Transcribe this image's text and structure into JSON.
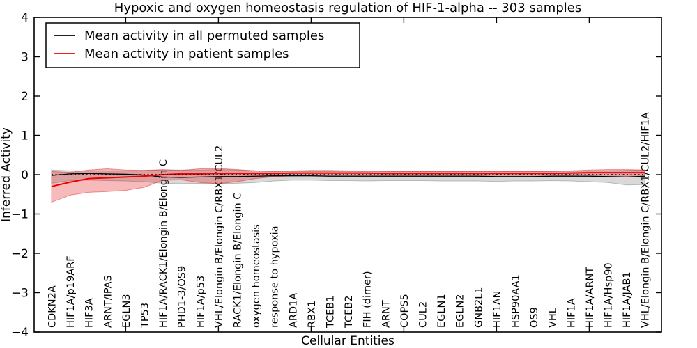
{
  "title": "Hypoxic and oxygen homeostasis regulation of HIF-1-alpha -- 303 samples",
  "legend": {
    "items": [
      {
        "label": "Mean activity in all permuted samples",
        "color": "#000000"
      },
      {
        "label": "Mean activity in patient samples",
        "color": "#ee0000"
      }
    ]
  },
  "chart_data": {
    "type": "line",
    "title": "Hypoxic and oxygen homeostasis regulation of HIF-1-alpha -- 303 samples",
    "xlabel": "Cellular Entities",
    "ylabel": "Inferred Activity",
    "ylim": [
      -4,
      4
    ],
    "ytick_values": [
      4,
      3,
      2,
      1,
      0,
      -1,
      -2,
      -3,
      -4
    ],
    "ytick_labels": [
      "4",
      "3",
      "2",
      "1",
      "0",
      "−1",
      "−2",
      "−3",
      "−4"
    ],
    "xticks_major": [
      5,
      10,
      15,
      20,
      25,
      30
    ],
    "grid": false,
    "legend_position": "upper left",
    "categories": [
      "CDKN2A",
      "HIF1A/p19ARF",
      "HIF3A",
      "ARNT/IPAS",
      "EGLN3",
      "TP53",
      "HIF1A/RACK1/Elongin B/Elongin C",
      "PHD1-3/OS9",
      "HIF1A/p53",
      "VHL/Elongin B/Elongin C/RBX1/CUL2",
      "RACK1/Elongin B/Elongin C",
      "oxygen homeostasis",
      "response to hypoxia",
      "ARD1A",
      "RBX1",
      "TCEB1",
      "TCEB2",
      "FIH (dimer)",
      "ARNT",
      "COPS5",
      "CUL2",
      "EGLN1",
      "EGLN2",
      "GNB2L1",
      "HIF1AN",
      "HSP90AA1",
      "OS9",
      "VHL",
      "HIF1A",
      "HIF1A/ARNT",
      "HIF1A/Hsp90",
      "HIF1A/JAB1",
      "VHL/Elongin B/Elongin C/RBX1/CUL2/HIF1A"
    ],
    "series": [
      {
        "name": "Mean activity in all permuted samples",
        "color": "#000000",
        "values": [
          -0.02,
          0.02,
          0.03,
          0.02,
          0.01,
          -0.01,
          -0.06,
          -0.07,
          -0.06,
          -0.05,
          -0.05,
          -0.04,
          -0.03,
          -0.03,
          -0.03,
          -0.04,
          -0.04,
          -0.04,
          -0.04,
          -0.04,
          -0.04,
          -0.04,
          -0.04,
          -0.04,
          -0.05,
          -0.05,
          -0.05,
          -0.04,
          -0.04,
          -0.04,
          -0.05,
          -0.06,
          -0.04
        ]
      },
      {
        "name": "Mean activity in patient samples",
        "color": "#ee0000",
        "values": [
          -0.3,
          -0.19,
          -0.1,
          -0.08,
          -0.06,
          -0.04,
          0.0,
          0.02,
          0.02,
          0.03,
          0.03,
          0.03,
          0.03,
          0.04,
          0.04,
          0.04,
          0.04,
          0.04,
          0.03,
          0.03,
          0.03,
          0.03,
          0.03,
          0.03,
          0.03,
          0.03,
          0.03,
          0.03,
          0.04,
          0.05,
          0.05,
          0.05,
          0.05
        ]
      }
    ],
    "bands": [
      {
        "name": "permuted samples range",
        "fill": "rgba(120,120,120,0.28)",
        "edge": "rgba(120,120,120,0.45)",
        "high": [
          0.12,
          0.1,
          0.1,
          0.1,
          0.1,
          0.11,
          0.12,
          0.12,
          0.12,
          0.13,
          0.12,
          0.1,
          0.08,
          0.08,
          0.08,
          0.08,
          0.08,
          0.08,
          0.08,
          0.08,
          0.08,
          0.08,
          0.08,
          0.08,
          0.08,
          0.08,
          0.08,
          0.08,
          0.09,
          0.1,
          0.1,
          0.11,
          0.12
        ],
        "low": [
          -0.22,
          -0.15,
          -0.14,
          -0.15,
          -0.16,
          -0.18,
          -0.22,
          -0.23,
          -0.22,
          -0.23,
          -0.22,
          -0.2,
          -0.16,
          -0.14,
          -0.14,
          -0.15,
          -0.15,
          -0.16,
          -0.15,
          -0.15,
          -0.15,
          -0.16,
          -0.16,
          -0.16,
          -0.17,
          -0.16,
          -0.16,
          -0.15,
          -0.16,
          -0.18,
          -0.2,
          -0.26,
          -0.25
        ]
      },
      {
        "name": "patient samples range",
        "fill": "rgba(229,26,28,0.30)",
        "edge": "rgba(229,26,28,0.45)",
        "high": [
          0.08,
          0.06,
          0.12,
          0.15,
          0.12,
          0.11,
          0.13,
          0.11,
          0.15,
          0.16,
          0.13,
          0.1,
          0.09,
          0.1,
          0.11,
          0.11,
          0.1,
          0.1,
          0.09,
          0.08,
          0.08,
          0.08,
          0.08,
          0.08,
          0.08,
          0.08,
          0.08,
          0.09,
          0.1,
          0.12,
          0.13,
          0.13,
          0.12
        ],
        "low": [
          -0.7,
          -0.52,
          -0.45,
          -0.43,
          -0.4,
          -0.32,
          -0.14,
          -0.13,
          -0.2,
          -0.23,
          -0.18,
          -0.1,
          -0.05,
          -0.03,
          -0.02,
          -0.02,
          -0.02,
          -0.02,
          -0.02,
          -0.02,
          -0.02,
          -0.02,
          -0.02,
          -0.02,
          -0.02,
          -0.02,
          -0.02,
          -0.02,
          -0.03,
          -0.04,
          -0.05,
          -0.05,
          -0.04
        ]
      }
    ],
    "reference_line": {
      "y": 0,
      "style": "dotted",
      "color": "#000000"
    }
  }
}
